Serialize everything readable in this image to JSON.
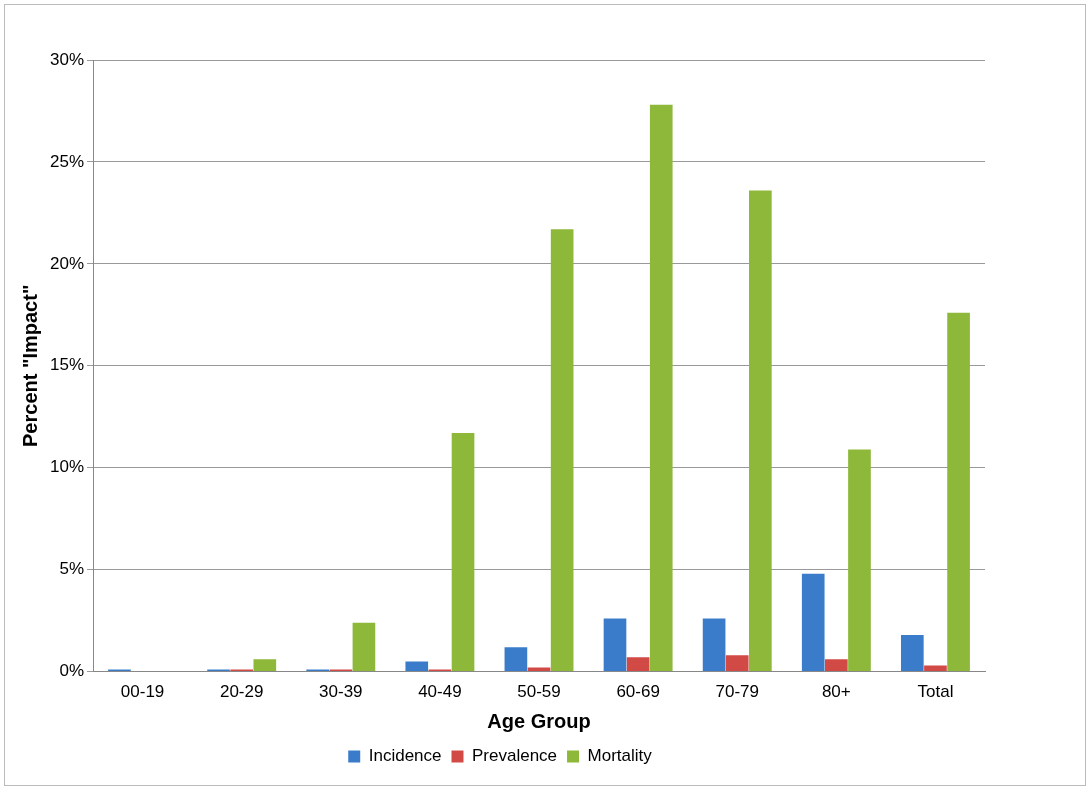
{
  "chart_data": {
    "type": "bar",
    "xlabel": "Age Group",
    "ylabel": "Percent \"Impact\"",
    "categories": [
      "00-19",
      "20-29",
      "30-39",
      "40-49",
      "50-59",
      "60-69",
      "70-79",
      "80+",
      "Total"
    ],
    "series": [
      {
        "name": "Incidence",
        "color": "#3a7cc9",
        "values": [
          0.1,
          0.1,
          0.1,
          0.5,
          1.2,
          2.6,
          2.6,
          4.8,
          1.8
        ]
      },
      {
        "name": "Prevalence",
        "color": "#d24a46",
        "values": [
          0,
          0.1,
          0.1,
          0.1,
          0.2,
          0.7,
          0.8,
          0.6,
          0.3
        ]
      },
      {
        "name": "Mortality",
        "color": "#8db83a",
        "values": [
          0,
          0.6,
          2.4,
          11.7,
          21.7,
          27.8,
          23.6,
          10.9,
          17.6
        ]
      }
    ],
    "ylim": [
      0,
      30
    ],
    "yticks": [
      {
        "value": 0,
        "label": "0%"
      },
      {
        "value": 5,
        "label": "5%"
      },
      {
        "value": 10,
        "label": "10%"
      },
      {
        "value": 15,
        "label": "15%"
      },
      {
        "value": 20,
        "label": "20%"
      },
      {
        "value": 25,
        "label": "25%"
      },
      {
        "value": 30,
        "label": "30%"
      }
    ],
    "grid": "y",
    "legend": "bottom"
  }
}
